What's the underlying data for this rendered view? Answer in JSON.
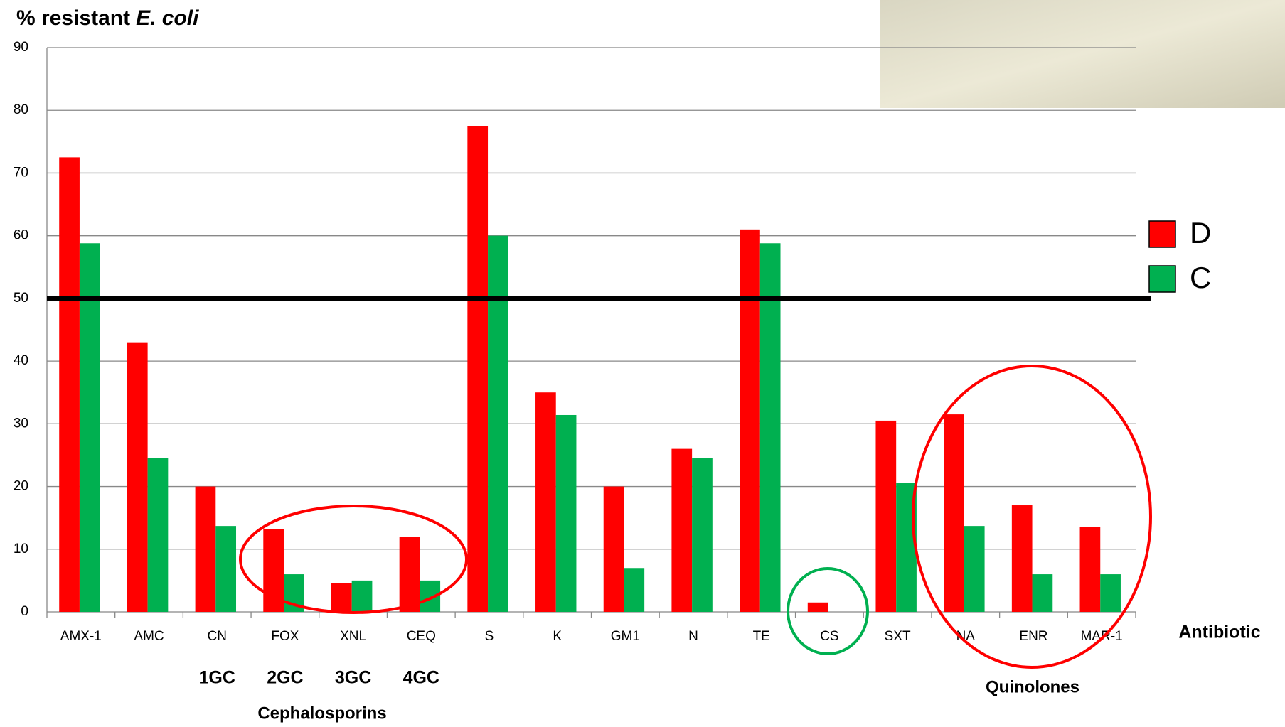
{
  "chart_data": {
    "type": "bar",
    "ylabel_parts": [
      "% resistant",
      "E. coli"
    ],
    "xlabel": "Antibiotic",
    "categories": [
      "AMX-1",
      "AMC",
      "CN",
      "FOX",
      "XNL",
      "CEQ",
      "S",
      "K",
      "GM1",
      "N",
      "TE",
      "CS",
      "SXT",
      "NA",
      "ENR",
      "MAR-1"
    ],
    "series": [
      {
        "name": "D",
        "color": "#ff0000",
        "values": [
          72.5,
          43,
          20,
          13.2,
          4.6,
          12,
          77.5,
          35,
          20,
          26,
          61,
          1.5,
          30.5,
          31.5,
          17,
          13.5
        ]
      },
      {
        "name": "C",
        "color": "#00b050",
        "values": [
          58.8,
          24.5,
          13.7,
          6,
          5,
          5,
          60,
          31.4,
          7,
          24.5,
          58.8,
          0,
          20.6,
          13.7,
          6,
          6
        ]
      }
    ],
    "ylim": [
      0,
      90
    ],
    "yticks": [
      0,
      10,
      20,
      30,
      40,
      50,
      60,
      70,
      80,
      90
    ],
    "grid": true,
    "reference_line": 50,
    "legend": "right",
    "group_labels": [
      "1GC",
      "2GC",
      "3GC",
      "4GC"
    ],
    "cephalosporins_label": "Cephalosporins",
    "quinolones_label": "Quinolones"
  }
}
